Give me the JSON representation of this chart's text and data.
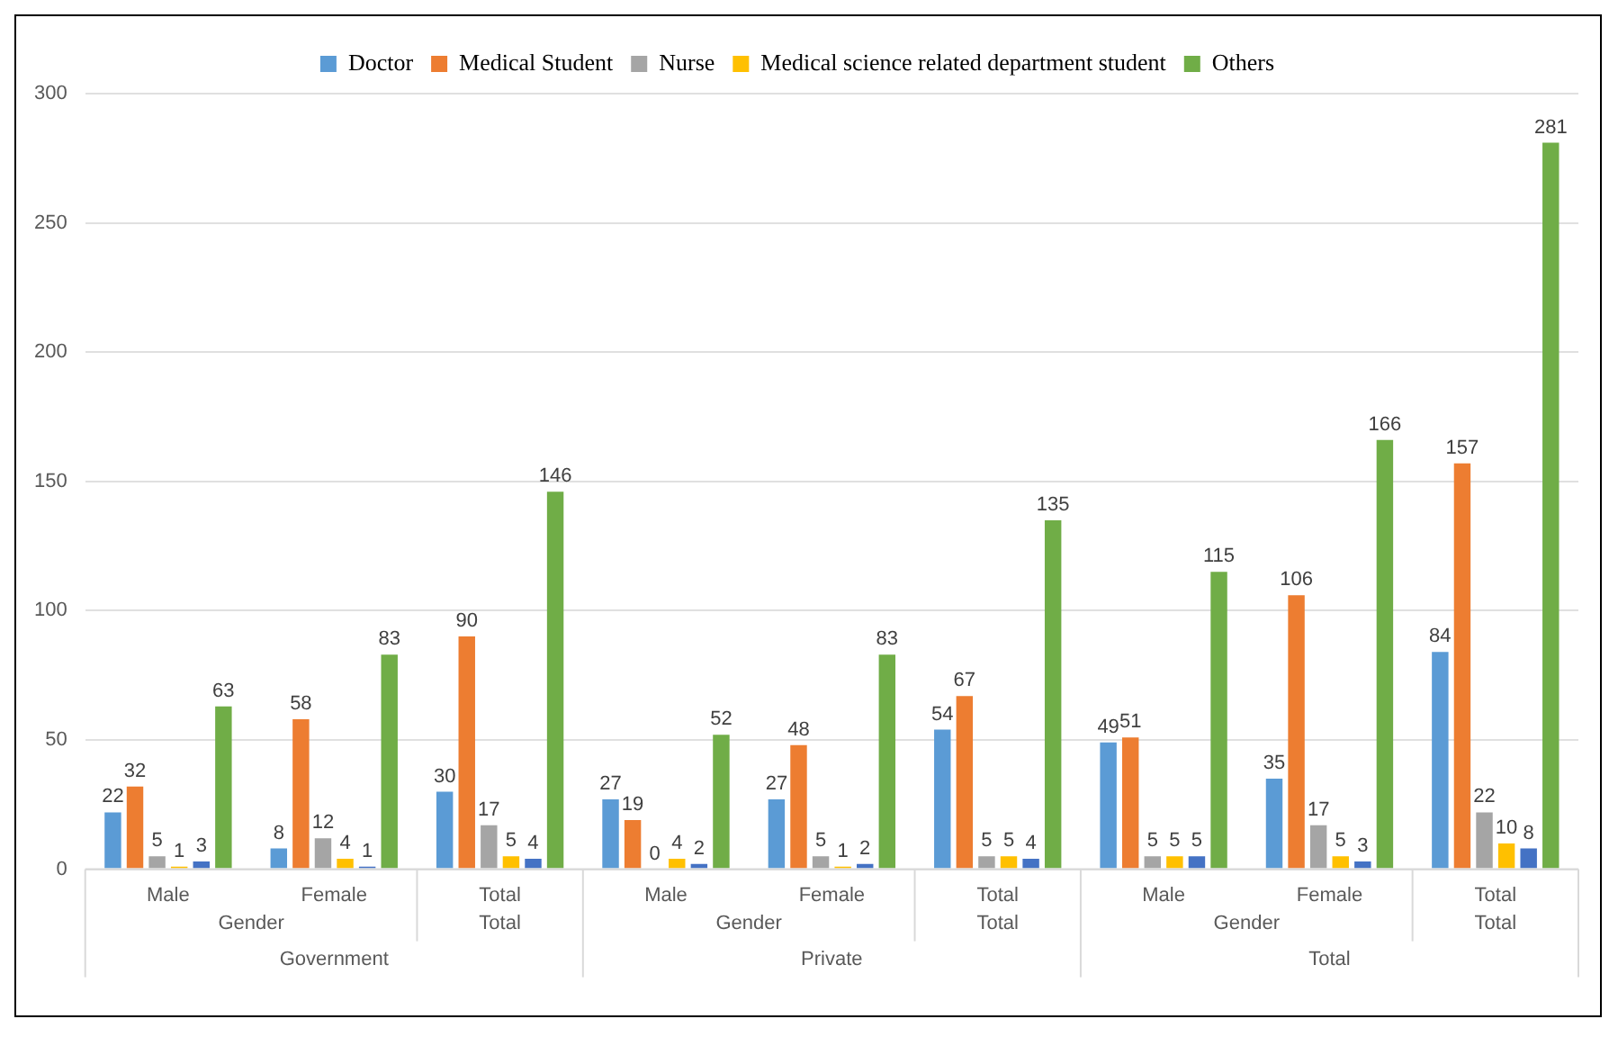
{
  "chart_data": {
    "type": "bar",
    "categories": [
      "Male",
      "Female",
      "Total",
      "Male",
      "Female",
      "Total",
      "Male",
      "Female",
      "Total"
    ],
    "series": [
      {
        "name": "Doctor",
        "color": "#5b9bd5",
        "values": [
          22,
          8,
          30,
          27,
          27,
          54,
          49,
          35,
          84
        ]
      },
      {
        "name": "Medical Student",
        "color": "#ed7d31",
        "values": [
          32,
          58,
          90,
          19,
          48,
          67,
          51,
          106,
          157
        ]
      },
      {
        "name": "Nurse",
        "color": "#a5a5a5",
        "values": [
          5,
          12,
          17,
          0,
          5,
          5,
          5,
          17,
          22
        ]
      },
      {
        "name": "Medical science related department student",
        "color": "#ffc000",
        "values": [
          1,
          4,
          5,
          4,
          1,
          5,
          5,
          5,
          10
        ]
      },
      {
        "color": "#4472c4",
        "values": [
          3,
          1,
          4,
          2,
          2,
          4,
          5,
          3,
          8
        ]
      },
      {
        "name": "Others",
        "color": "#70ad47",
        "values": [
          63,
          83,
          146,
          52,
          83,
          135,
          115,
          166,
          281
        ]
      }
    ],
    "annotations": [
      "Gender",
      "Total",
      "Government",
      "Gender",
      "Total",
      "Private",
      "Gender",
      "Total",
      "Total"
    ],
    "ylim": [
      0,
      300
    ],
    "yticks": [
      0,
      50,
      100,
      150,
      200,
      250,
      300
    ],
    "grid": "y",
    "legend": "top",
    "data_labels": true
  }
}
